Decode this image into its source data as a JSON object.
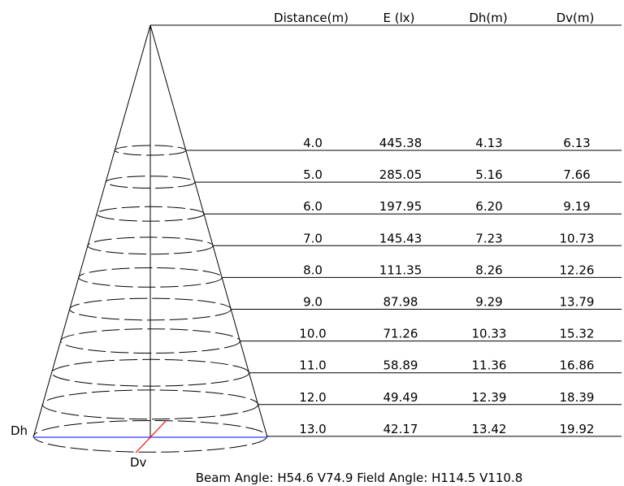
{
  "headers": {
    "distance": "Distance(m)",
    "illuminance": "E (lx)",
    "dh": "Dh(m)",
    "dv": "Dv(m)"
  },
  "rows": [
    {
      "distance": "4.0",
      "illuminance": "445.38",
      "dh": "4.13",
      "dv": "6.13"
    },
    {
      "distance": "5.0",
      "illuminance": "285.05",
      "dh": "5.16",
      "dv": "7.66"
    },
    {
      "distance": "6.0",
      "illuminance": "197.95",
      "dh": "6.20",
      "dv": "9.19"
    },
    {
      "distance": "7.0",
      "illuminance": "145.43",
      "dh": "7.23",
      "dv": "10.73"
    },
    {
      "distance": "8.0",
      "illuminance": "111.35",
      "dh": "8.26",
      "dv": "12.26"
    },
    {
      "distance": "9.0",
      "illuminance": "87.98",
      "dh": "9.29",
      "dv": "13.79"
    },
    {
      "distance": "10.0",
      "illuminance": "71.26",
      "dh": "10.33",
      "dv": "15.32"
    },
    {
      "distance": "11.0",
      "illuminance": "58.89",
      "dh": "11.36",
      "dv": "16.86"
    },
    {
      "distance": "12.0",
      "illuminance": "49.49",
      "dh": "12.39",
      "dv": "18.39"
    },
    {
      "distance": "13.0",
      "illuminance": "42.17",
      "dh": "13.42",
      "dv": "19.92"
    }
  ],
  "labels": {
    "dh": "Dh",
    "dv": "Dv",
    "footer": "Beam Angle: H54.6 V74.9  Field Angle: H114.5 V110.8"
  },
  "colors": {
    "lines": "#000000",
    "dh_axis": "#3333ff",
    "dv_axis": "#ff0000"
  }
}
